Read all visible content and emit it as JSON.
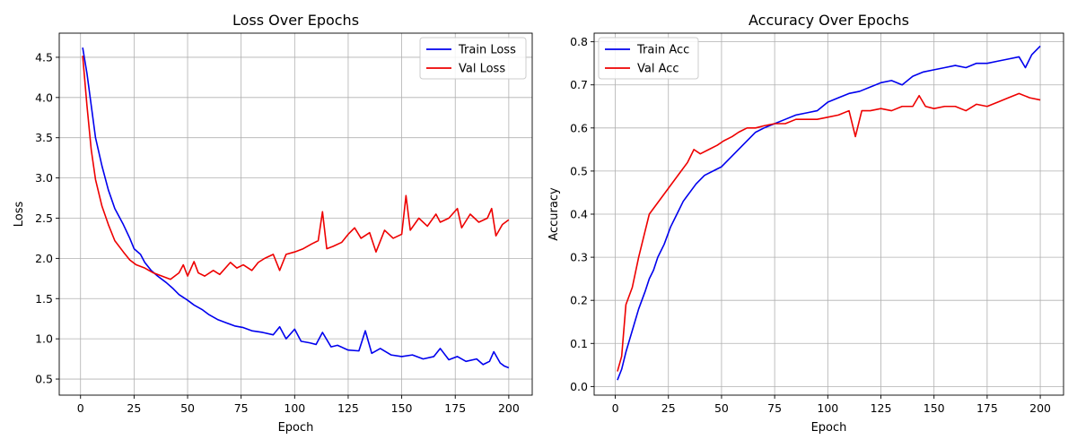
{
  "chart_data": [
    {
      "type": "line",
      "title": "Loss Over Epochs",
      "xlabel": "Epoch",
      "ylabel": "Loss",
      "xlim": [
        -9.95,
        210.95
      ],
      "ylim": [
        0.3,
        4.8
      ],
      "xticks": [
        0,
        25,
        50,
        75,
        100,
        125,
        150,
        175,
        200
      ],
      "yticks": [
        0.5,
        1.0,
        1.5,
        2.0,
        2.5,
        3.0,
        3.5,
        4.0,
        4.5
      ],
      "ytick_format": 1,
      "grid": true,
      "legend_position": "top-right",
      "series": [
        {
          "name": "Train Loss",
          "color": "#0000ee",
          "points": [
            [
              1,
              4.62
            ],
            [
              3,
              4.3
            ],
            [
              5,
              3.9
            ],
            [
              7,
              3.5
            ],
            [
              10,
              3.15
            ],
            [
              13,
              2.85
            ],
            [
              16,
              2.62
            ],
            [
              20,
              2.42
            ],
            [
              23,
              2.25
            ],
            [
              25,
              2.12
            ],
            [
              28,
              2.05
            ],
            [
              30,
              1.95
            ],
            [
              33,
              1.85
            ],
            [
              36,
              1.78
            ],
            [
              40,
              1.7
            ],
            [
              43,
              1.63
            ],
            [
              46,
              1.55
            ],
            [
              50,
              1.48
            ],
            [
              53,
              1.42
            ],
            [
              57,
              1.36
            ],
            [
              60,
              1.3
            ],
            [
              64,
              1.24
            ],
            [
              68,
              1.2
            ],
            [
              72,
              1.16
            ],
            [
              76,
              1.14
            ],
            [
              80,
              1.1
            ],
            [
              85,
              1.08
            ],
            [
              90,
              1.05
            ],
            [
              93,
              1.15
            ],
            [
              96,
              1.0
            ],
            [
              100,
              1.12
            ],
            [
              103,
              0.97
            ],
            [
              107,
              0.95
            ],
            [
              110,
              0.93
            ],
            [
              113,
              1.08
            ],
            [
              117,
              0.9
            ],
            [
              120,
              0.92
            ],
            [
              125,
              0.86
            ],
            [
              130,
              0.85
            ],
            [
              133,
              1.1
            ],
            [
              136,
              0.82
            ],
            [
              140,
              0.88
            ],
            [
              145,
              0.8
            ],
            [
              150,
              0.78
            ],
            [
              155,
              0.8
            ],
            [
              160,
              0.75
            ],
            [
              165,
              0.78
            ],
            [
              168,
              0.88
            ],
            [
              172,
              0.74
            ],
            [
              176,
              0.78
            ],
            [
              180,
              0.72
            ],
            [
              185,
              0.75
            ],
            [
              188,
              0.68
            ],
            [
              191,
              0.72
            ],
            [
              193,
              0.84
            ],
            [
              196,
              0.7
            ],
            [
              198,
              0.66
            ],
            [
              200,
              0.64
            ]
          ]
        },
        {
          "name": "Val Loss",
          "color": "#ee0000",
          "points": [
            [
              1,
              4.52
            ],
            [
              3,
              3.9
            ],
            [
              5,
              3.35
            ],
            [
              7,
              2.98
            ],
            [
              10,
              2.65
            ],
            [
              13,
              2.42
            ],
            [
              16,
              2.22
            ],
            [
              20,
              2.08
            ],
            [
              23,
              1.98
            ],
            [
              26,
              1.92
            ],
            [
              30,
              1.88
            ],
            [
              34,
              1.82
            ],
            [
              38,
              1.78
            ],
            [
              42,
              1.74
            ],
            [
              46,
              1.82
            ],
            [
              48,
              1.92
            ],
            [
              50,
              1.78
            ],
            [
              53,
              1.96
            ],
            [
              55,
              1.82
            ],
            [
              58,
              1.78
            ],
            [
              62,
              1.85
            ],
            [
              65,
              1.8
            ],
            [
              70,
              1.95
            ],
            [
              73,
              1.88
            ],
            [
              76,
              1.92
            ],
            [
              80,
              1.85
            ],
            [
              83,
              1.95
            ],
            [
              86,
              2.0
            ],
            [
              90,
              2.05
            ],
            [
              93,
              1.85
            ],
            [
              96,
              2.05
            ],
            [
              100,
              2.08
            ],
            [
              104,
              2.12
            ],
            [
              108,
              2.18
            ],
            [
              111,
              2.22
            ],
            [
              113,
              2.58
            ],
            [
              115,
              2.12
            ],
            [
              118,
              2.15
            ],
            [
              122,
              2.2
            ],
            [
              125,
              2.3
            ],
            [
              128,
              2.38
            ],
            [
              131,
              2.25
            ],
            [
              135,
              2.32
            ],
            [
              138,
              2.08
            ],
            [
              142,
              2.35
            ],
            [
              146,
              2.25
            ],
            [
              150,
              2.3
            ],
            [
              152,
              2.78
            ],
            [
              154,
              2.35
            ],
            [
              158,
              2.5
            ],
            [
              162,
              2.4
            ],
            [
              166,
              2.55
            ],
            [
              168,
              2.45
            ],
            [
              172,
              2.5
            ],
            [
              176,
              2.62
            ],
            [
              178,
              2.38
            ],
            [
              182,
              2.55
            ],
            [
              186,
              2.45
            ],
            [
              190,
              2.5
            ],
            [
              192,
              2.62
            ],
            [
              194,
              2.28
            ],
            [
              197,
              2.42
            ],
            [
              200,
              2.48
            ]
          ]
        }
      ]
    },
    {
      "type": "line",
      "title": "Accuracy Over Epochs",
      "xlabel": "Epoch",
      "ylabel": "Accuracy",
      "xlim": [
        -9.95,
        210.95
      ],
      "ylim": [
        -0.02,
        0.82
      ],
      "xticks": [
        0,
        25,
        50,
        75,
        100,
        125,
        150,
        175,
        200
      ],
      "yticks": [
        0.0,
        0.1,
        0.2,
        0.3,
        0.4,
        0.5,
        0.6,
        0.7,
        0.8
      ],
      "ytick_format": 1,
      "grid": true,
      "legend_position": "top-left",
      "series": [
        {
          "name": "Train Acc",
          "color": "#0000ee",
          "points": [
            [
              1,
              0.015
            ],
            [
              3,
              0.04
            ],
            [
              5,
              0.08
            ],
            [
              8,
              0.13
            ],
            [
              11,
              0.18
            ],
            [
              14,
              0.22
            ],
            [
              16,
              0.25
            ],
            [
              18,
              0.27
            ],
            [
              20,
              0.3
            ],
            [
              23,
              0.33
            ],
            [
              26,
              0.37
            ],
            [
              29,
              0.4
            ],
            [
              32,
              0.43
            ],
            [
              35,
              0.45
            ],
            [
              38,
              0.47
            ],
            [
              42,
              0.49
            ],
            [
              46,
              0.5
            ],
            [
              50,
              0.51
            ],
            [
              54,
              0.53
            ],
            [
              58,
              0.55
            ],
            [
              62,
              0.57
            ],
            [
              66,
              0.59
            ],
            [
              70,
              0.6
            ],
            [
              75,
              0.61
            ],
            [
              80,
              0.62
            ],
            [
              85,
              0.63
            ],
            [
              90,
              0.635
            ],
            [
              95,
              0.64
            ],
            [
              100,
              0.66
            ],
            [
              105,
              0.67
            ],
            [
              110,
              0.68
            ],
            [
              115,
              0.685
            ],
            [
              120,
              0.695
            ],
            [
              125,
              0.705
            ],
            [
              130,
              0.71
            ],
            [
              135,
              0.7
            ],
            [
              140,
              0.72
            ],
            [
              145,
              0.73
            ],
            [
              150,
              0.735
            ],
            [
              155,
              0.74
            ],
            [
              160,
              0.745
            ],
            [
              165,
              0.74
            ],
            [
              170,
              0.75
            ],
            [
              175,
              0.75
            ],
            [
              180,
              0.755
            ],
            [
              185,
              0.76
            ],
            [
              190,
              0.765
            ],
            [
              193,
              0.74
            ],
            [
              196,
              0.77
            ],
            [
              200,
              0.79
            ]
          ]
        },
        {
          "name": "Val Acc",
          "color": "#ee0000",
          "points": [
            [
              1,
              0.035
            ],
            [
              3,
              0.07
            ],
            [
              5,
              0.19
            ],
            [
              8,
              0.23
            ],
            [
              11,
              0.3
            ],
            [
              14,
              0.36
            ],
            [
              16,
              0.4
            ],
            [
              19,
              0.42
            ],
            [
              22,
              0.44
            ],
            [
              25,
              0.46
            ],
            [
              28,
              0.48
            ],
            [
              31,
              0.5
            ],
            [
              34,
              0.52
            ],
            [
              37,
              0.55
            ],
            [
              40,
              0.54
            ],
            [
              44,
              0.55
            ],
            [
              48,
              0.56
            ],
            [
              51,
              0.57
            ],
            [
              55,
              0.58
            ],
            [
              58,
              0.59
            ],
            [
              62,
              0.6
            ],
            [
              66,
              0.6
            ],
            [
              70,
              0.605
            ],
            [
              75,
              0.61
            ],
            [
              80,
              0.61
            ],
            [
              85,
              0.62
            ],
            [
              90,
              0.62
            ],
            [
              95,
              0.62
            ],
            [
              100,
              0.625
            ],
            [
              105,
              0.63
            ],
            [
              110,
              0.64
            ],
            [
              113,
              0.58
            ],
            [
              116,
              0.64
            ],
            [
              120,
              0.64
            ],
            [
              125,
              0.645
            ],
            [
              130,
              0.64
            ],
            [
              135,
              0.65
            ],
            [
              140,
              0.65
            ],
            [
              143,
              0.675
            ],
            [
              146,
              0.65
            ],
            [
              150,
              0.645
            ],
            [
              155,
              0.65
            ],
            [
              160,
              0.65
            ],
            [
              165,
              0.64
            ],
            [
              170,
              0.655
            ],
            [
              175,
              0.65
            ],
            [
              180,
              0.66
            ],
            [
              185,
              0.67
            ],
            [
              190,
              0.68
            ],
            [
              195,
              0.67
            ],
            [
              200,
              0.665
            ]
          ]
        }
      ]
    }
  ]
}
